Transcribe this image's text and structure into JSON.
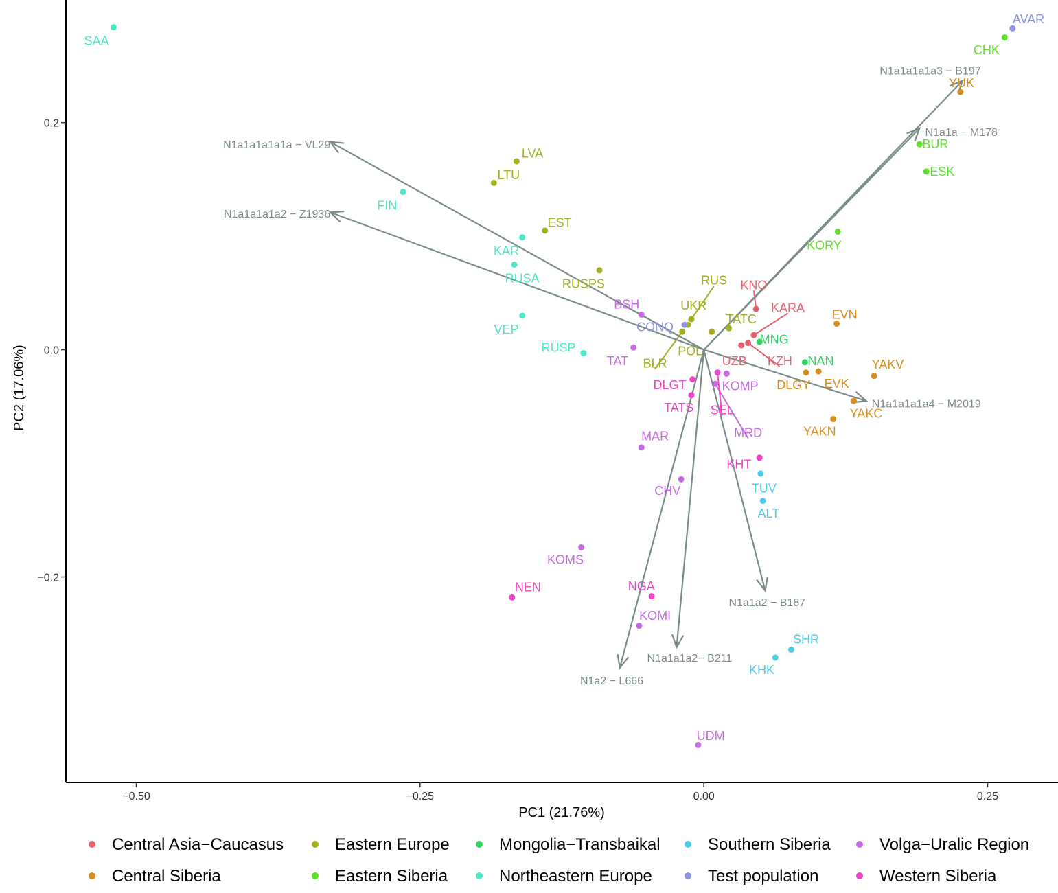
{
  "chart_data": {
    "type": "scatter",
    "xlabel": "PC1 (21.76%)",
    "ylabel": "PC2 (17.06%)",
    "xlim": [
      -0.562,
      0.312
    ],
    "ylim": [
      -0.381,
      0.308
    ],
    "x_ticks": [
      {
        "value": -0.5,
        "label": "−0.50"
      },
      {
        "value": -0.25,
        "label": "−0.25"
      },
      {
        "value": 0.0,
        "label": "0.00"
      },
      {
        "value": 0.25,
        "label": "0.25"
      }
    ],
    "y_ticks": [
      {
        "value": 0.2,
        "label": "0.2"
      },
      {
        "value": 0.0,
        "label": "0.0"
      },
      {
        "value": -0.2,
        "label": "−0.2"
      }
    ],
    "grid": false,
    "legend_position": "bottom",
    "groups": [
      {
        "name": "Central Asia−Caucasus",
        "color": "#E8636F"
      },
      {
        "name": "Central Siberia",
        "color": "#D68E20"
      },
      {
        "name": "Eastern Europe",
        "color": "#A3AE21"
      },
      {
        "name": "Eastern Siberia",
        "color": "#5FE02A"
      },
      {
        "name": "Mongolia−Transbaikal",
        "color": "#33D166"
      },
      {
        "name": "Northeastern Europe",
        "color": "#4DE8C6"
      },
      {
        "name": "Southern Siberia",
        "color": "#4DCBEA"
      },
      {
        "name": "Test population",
        "color": "#8E95DE"
      },
      {
        "name": "Volga−Uralic Region",
        "color": "#C56AE0"
      },
      {
        "name": "Western Siberia",
        "color": "#EE45C8"
      }
    ],
    "points": [
      {
        "label": "SAA",
        "group": 5,
        "x": -0.52,
        "y": 0.284,
        "lx": -0.535,
        "ly": 0.272
      },
      {
        "label": "FIN",
        "group": 5,
        "x": -0.265,
        "y": 0.139,
        "lx": -0.279,
        "ly": 0.127
      },
      {
        "label": "KAR",
        "group": 5,
        "x": -0.16,
        "y": 0.099,
        "lx": -0.174,
        "ly": 0.087
      },
      {
        "label": "RUSA",
        "group": 5,
        "x": -0.167,
        "y": 0.075,
        "lx": -0.16,
        "ly": 0.063
      },
      {
        "label": "VEP",
        "group": 5,
        "x": -0.16,
        "y": 0.03,
        "lx": -0.174,
        "ly": 0.018
      },
      {
        "label": "RUSP",
        "group": 5,
        "x": -0.106,
        "y": -0.003,
        "lx": -0.128,
        "ly": 0.002
      },
      {
        "label": "LVA",
        "group": 2,
        "x": -0.165,
        "y": 0.166,
        "lx": -0.151,
        "ly": 0.173
      },
      {
        "label": "LTU",
        "group": 2,
        "x": -0.185,
        "y": 0.147,
        "lx": -0.172,
        "ly": 0.154
      },
      {
        "label": "EST",
        "group": 2,
        "x": -0.14,
        "y": 0.105,
        "lx": -0.127,
        "ly": 0.112
      },
      {
        "label": "RUSPS",
        "group": 2,
        "x": -0.092,
        "y": 0.07,
        "lx": -0.106,
        "ly": 0.058
      },
      {
        "label": "RUS",
        "group": 2,
        "x": -0.011,
        "y": 0.027,
        "lx": 0.009,
        "ly": 0.061,
        "line": true
      },
      {
        "label": "UKR",
        "group": 2,
        "x": -0.014,
        "y": 0.022,
        "lx": -0.009,
        "ly": 0.039
      },
      {
        "label": "BLR",
        "group": 2,
        "x": -0.019,
        "y": 0.016,
        "lx": -0.043,
        "ly": -0.012,
        "line": true
      },
      {
        "label": "POL",
        "group": 2,
        "x": 0.007,
        "y": 0.016,
        "lx": -0.012,
        "ly": -0.001
      },
      {
        "label": "TATC",
        "group": 2,
        "x": 0.022,
        "y": 0.019,
        "lx": 0.033,
        "ly": 0.027
      },
      {
        "label": "CONQ",
        "group": 7,
        "x": -0.017,
        "y": 0.022,
        "lx": -0.043,
        "ly": 0.02
      },
      {
        "label": "AVAR",
        "group": 7,
        "x": 0.272,
        "y": 0.283,
        "lx": 0.286,
        "ly": 0.291
      },
      {
        "label": "CHK",
        "group": 3,
        "x": 0.265,
        "y": 0.275,
        "lx": 0.249,
        "ly": 0.264
      },
      {
        "label": "BUR",
        "group": 3,
        "x": 0.19,
        "y": 0.181,
        "lx": 0.204,
        "ly": 0.181
      },
      {
        "label": "ESK",
        "group": 3,
        "x": 0.196,
        "y": 0.157,
        "lx": 0.21,
        "ly": 0.157
      },
      {
        "label": "KORY",
        "group": 3,
        "x": 0.118,
        "y": 0.104,
        "lx": 0.106,
        "ly": 0.092
      },
      {
        "label": "MNG",
        "group": 4,
        "x": 0.049,
        "y": 0.007,
        "lx": 0.062,
        "ly": 0.009
      },
      {
        "label": "NAN",
        "group": 4,
        "x": 0.089,
        "y": -0.011,
        "lx": 0.103,
        "ly": -0.01
      },
      {
        "label": "YUK",
        "group": 1,
        "x": 0.226,
        "y": 0.227,
        "lx": 0.227,
        "ly": 0.235
      },
      {
        "label": "EVN",
        "group": 1,
        "x": 0.117,
        "y": 0.023,
        "lx": 0.124,
        "ly": 0.031
      },
      {
        "label": "YAKV",
        "group": 1,
        "x": 0.15,
        "y": -0.023,
        "lx": 0.162,
        "ly": -0.013
      },
      {
        "label": "EVK",
        "group": 1,
        "x": 0.101,
        "y": -0.019,
        "lx": 0.117,
        "ly": -0.03
      },
      {
        "label": "DLGY",
        "group": 1,
        "x": 0.09,
        "y": -0.02,
        "lx": 0.079,
        "ly": -0.031
      },
      {
        "label": "YAKC",
        "group": 1,
        "x": 0.132,
        "y": -0.045,
        "lx": 0.143,
        "ly": -0.056
      },
      {
        "label": "YAKN",
        "group": 1,
        "x": 0.114,
        "y": -0.061,
        "lx": 0.102,
        "ly": -0.072
      },
      {
        "label": "KNO",
        "group": 0,
        "x": 0.046,
        "y": 0.036,
        "lx": 0.044,
        "ly": 0.057,
        "line": true
      },
      {
        "label": "KARA",
        "group": 0,
        "x": 0.044,
        "y": 0.013,
        "lx": 0.074,
        "ly": 0.037,
        "line": true
      },
      {
        "label": "KZH",
        "group": 0,
        "x": 0.039,
        "y": 0.006,
        "lx": 0.067,
        "ly": -0.01,
        "line": true
      },
      {
        "label": "UZB",
        "group": 0,
        "x": 0.033,
        "y": 0.004,
        "lx": 0.027,
        "ly": -0.01
      },
      {
        "label": "BSH",
        "group": 8,
        "x": -0.055,
        "y": 0.031,
        "lx": -0.068,
        "ly": 0.04
      },
      {
        "label": "TAT",
        "group": 8,
        "x": -0.062,
        "y": 0.002,
        "lx": -0.076,
        "ly": -0.01
      },
      {
        "label": "KOMP",
        "group": 8,
        "x": 0.02,
        "y": -0.021,
        "lx": 0.032,
        "ly": -0.032
      },
      {
        "label": "MRD",
        "group": 8,
        "x": 0.01,
        "y": -0.03,
        "lx": 0.039,
        "ly": -0.073,
        "line": true
      },
      {
        "label": "MAR",
        "group": 8,
        "x": -0.055,
        "y": -0.086,
        "lx": -0.043,
        "ly": -0.076
      },
      {
        "label": "CHV",
        "group": 8,
        "x": -0.02,
        "y": -0.114,
        "lx": -0.032,
        "ly": -0.124
      },
      {
        "label": "KOMS",
        "group": 8,
        "x": -0.108,
        "y": -0.174,
        "lx": -0.122,
        "ly": -0.185
      },
      {
        "label": "KOMI",
        "group": 8,
        "x": -0.057,
        "y": -0.243,
        "lx": -0.043,
        "ly": -0.234
      },
      {
        "label": "UDM",
        "group": 8,
        "x": -0.005,
        "y": -0.348,
        "lx": 0.006,
        "ly": -0.34
      },
      {
        "label": "DLGT",
        "group": 9,
        "x": -0.01,
        "y": -0.026,
        "lx": -0.03,
        "ly": -0.031
      },
      {
        "label": "TATS",
        "group": 9,
        "x": -0.011,
        "y": -0.04,
        "lx": -0.022,
        "ly": -0.051
      },
      {
        "label": "SEL",
        "group": 9,
        "x": 0.012,
        "y": -0.02,
        "lx": 0.016,
        "ly": -0.053,
        "line": true
      },
      {
        "label": "KHT",
        "group": 9,
        "x": 0.049,
        "y": -0.095,
        "lx": 0.031,
        "ly": -0.101
      },
      {
        "label": "NGA",
        "group": 9,
        "x": -0.046,
        "y": -0.217,
        "lx": -0.055,
        "ly": -0.208
      },
      {
        "label": "NEN",
        "group": 9,
        "x": -0.169,
        "y": -0.218,
        "lx": -0.155,
        "ly": -0.209
      },
      {
        "label": "TUV",
        "group": 6,
        "x": 0.05,
        "y": -0.109,
        "lx": 0.053,
        "ly": -0.122
      },
      {
        "label": "ALT",
        "group": 6,
        "x": 0.052,
        "y": -0.133,
        "lx": 0.057,
        "ly": -0.144
      },
      {
        "label": "SHR",
        "group": 6,
        "x": 0.077,
        "y": -0.264,
        "lx": 0.09,
        "ly": -0.255
      },
      {
        "label": "KHK",
        "group": 6,
        "x": 0.063,
        "y": -0.271,
        "lx": 0.051,
        "ly": -0.282
      }
    ],
    "loadings": [
      {
        "label": "N1a1a1a1a1a − VL29",
        "x": -0.329,
        "y": 0.183,
        "lx": -0.329,
        "ly": 0.181,
        "anchor": "end"
      },
      {
        "label": "N1a1a1a1a2 − Z1936",
        "x": -0.329,
        "y": 0.121,
        "lx": -0.329,
        "ly": 0.12,
        "anchor": "end"
      },
      {
        "label": "N1a1a1a1a3 − B197",
        "x": 0.228,
        "y": 0.237,
        "lx": 0.155,
        "ly": 0.246,
        "anchor": "start"
      },
      {
        "label": "N1a1a − M178",
        "x": 0.19,
        "y": 0.195,
        "lx": 0.195,
        "ly": 0.192,
        "anchor": "start"
      },
      {
        "label": "N1a1a1a1a4 − M2019",
        "x": 0.143,
        "y": -0.045,
        "lx": 0.148,
        "ly": -0.047,
        "anchor": "start"
      },
      {
        "label": "N1a1a2 − B187",
        "x": 0.054,
        "y": -0.212,
        "lx": 0.022,
        "ly": -0.222,
        "anchor": "start"
      },
      {
        "label": "N1a1a1a2− B211",
        "x": -0.024,
        "y": -0.262,
        "lx": -0.05,
        "ly": -0.271,
        "anchor": "start"
      },
      {
        "label": "N1a2 − L666",
        "x": -0.074,
        "y": -0.28,
        "lx": -0.109,
        "ly": -0.291,
        "anchor": "start"
      }
    ]
  }
}
